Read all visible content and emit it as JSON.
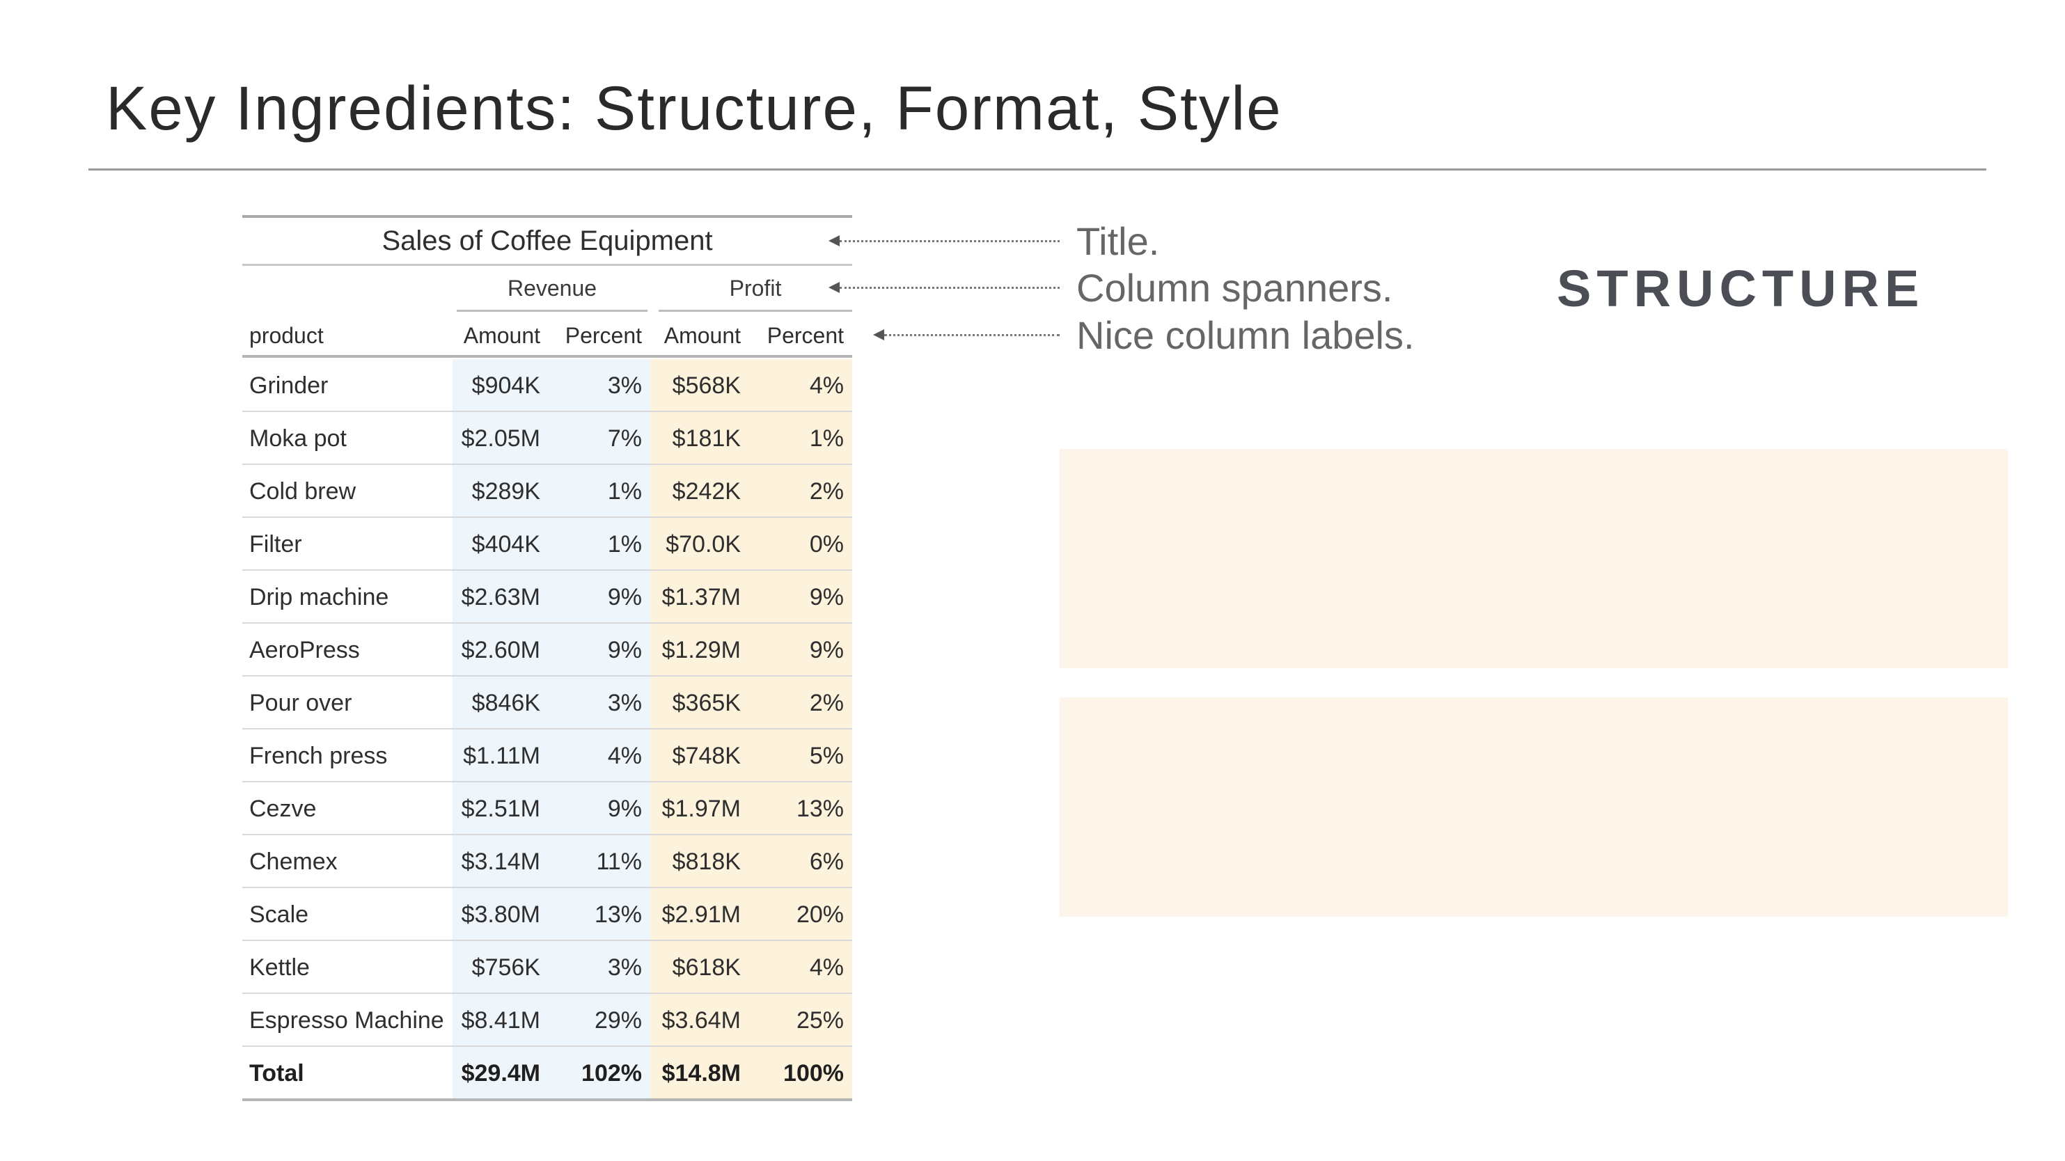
{
  "slide": {
    "title": "Key Ingredients: Structure, Format, Style",
    "section_label": "STRUCTURE"
  },
  "table": {
    "title": "Sales of Coffee Equipment",
    "spanners": [
      "Revenue",
      "Profit"
    ],
    "column_labels": [
      "product",
      "Amount",
      "Percent",
      "Amount",
      "Percent"
    ],
    "rows": [
      {
        "product": "Grinder",
        "rev_amount": "$904K",
        "rev_pct": "3%",
        "prof_amount": "$568K",
        "prof_pct": "4%"
      },
      {
        "product": "Moka pot",
        "rev_amount": "$2.05M",
        "rev_pct": "7%",
        "prof_amount": "$181K",
        "prof_pct": "1%"
      },
      {
        "product": "Cold brew",
        "rev_amount": "$289K",
        "rev_pct": "1%",
        "prof_amount": "$242K",
        "prof_pct": "2%"
      },
      {
        "product": "Filter",
        "rev_amount": "$404K",
        "rev_pct": "1%",
        "prof_amount": "$70.0K",
        "prof_pct": "0%"
      },
      {
        "product": "Drip machine",
        "rev_amount": "$2.63M",
        "rev_pct": "9%",
        "prof_amount": "$1.37M",
        "prof_pct": "9%"
      },
      {
        "product": "AeroPress",
        "rev_amount": "$2.60M",
        "rev_pct": "9%",
        "prof_amount": "$1.29M",
        "prof_pct": "9%"
      },
      {
        "product": "Pour over",
        "rev_amount": "$846K",
        "rev_pct": "3%",
        "prof_amount": "$365K",
        "prof_pct": "2%"
      },
      {
        "product": "French press",
        "rev_amount": "$1.11M",
        "rev_pct": "4%",
        "prof_amount": "$748K",
        "prof_pct": "5%"
      },
      {
        "product": "Cezve",
        "rev_amount": "$2.51M",
        "rev_pct": "9%",
        "prof_amount": "$1.97M",
        "prof_pct": "13%"
      },
      {
        "product": "Chemex",
        "rev_amount": "$3.14M",
        "rev_pct": "11%",
        "prof_amount": "$818K",
        "prof_pct": "6%"
      },
      {
        "product": "Scale",
        "rev_amount": "$3.80M",
        "rev_pct": "13%",
        "prof_amount": "$2.91M",
        "prof_pct": "20%"
      },
      {
        "product": "Kettle",
        "rev_amount": "$756K",
        "rev_pct": "3%",
        "prof_amount": "$618K",
        "prof_pct": "4%"
      },
      {
        "product": "Espresso Machine",
        "rev_amount": "$8.41M",
        "rev_pct": "29%",
        "prof_amount": "$3.64M",
        "prof_pct": "25%"
      }
    ],
    "total": {
      "product": "Total",
      "rev_amount": "$29.4M",
      "rev_pct": "102%",
      "prof_amount": "$14.8M",
      "prof_pct": "100%"
    }
  },
  "annotations": [
    "Title.",
    "Column spanners.",
    "Nice column labels."
  ],
  "colors": {
    "revenue_fill": "#eef5fb",
    "profit_fill": "#fdf2dc",
    "panel_fill": "#fdf4ea"
  }
}
